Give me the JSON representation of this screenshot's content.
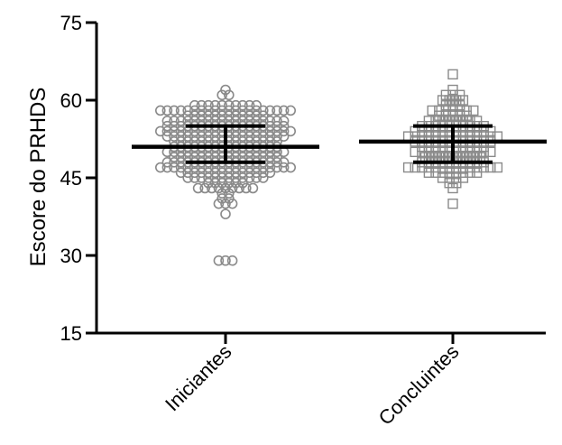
{
  "chart_data": {
    "type": "scatter",
    "ylabel": "Escore do PRHDS",
    "xlabel": "",
    "ylim": [
      15,
      75
    ],
    "yticks": [
      15,
      30,
      45,
      60,
      75
    ],
    "categories": [
      "Iniciantes",
      "Concluintes"
    ],
    "error_bars": "mean ± SD",
    "series": [
      {
        "category": "Iniciantes",
        "marker": "circle",
        "mean": 51,
        "sd_low": 48,
        "sd_high": 55,
        "values": [
          62,
          61,
          61,
          59,
          59,
          59,
          59,
          59,
          59,
          59,
          59,
          59,
          59,
          58,
          58,
          58,
          58,
          58,
          58,
          58,
          58,
          58,
          58,
          58,
          58,
          58,
          58,
          58,
          58,
          58,
          58,
          58,
          58,
          57,
          57,
          57,
          57,
          57,
          57,
          57,
          57,
          57,
          57,
          57,
          57,
          56,
          56,
          56,
          56,
          56,
          56,
          56,
          56,
          56,
          56,
          56,
          56,
          56,
          56,
          56,
          56,
          56,
          56,
          55,
          55,
          55,
          55,
          55,
          55,
          55,
          55,
          55,
          55,
          55,
          55,
          55,
          55,
          55,
          55,
          55,
          55,
          54,
          54,
          54,
          54,
          54,
          54,
          54,
          54,
          54,
          54,
          54,
          54,
          54,
          54,
          54,
          54,
          54,
          54,
          54,
          54,
          53,
          53,
          53,
          53,
          53,
          53,
          53,
          53,
          53,
          53,
          53,
          53,
          53,
          53,
          53,
          53,
          53,
          53,
          52,
          52,
          52,
          52,
          52,
          52,
          52,
          52,
          52,
          52,
          52,
          52,
          52,
          52,
          52,
          52,
          51,
          51,
          51,
          51,
          51,
          51,
          51,
          51,
          51,
          51,
          51,
          51,
          51,
          51,
          51,
          51,
          50,
          50,
          50,
          50,
          50,
          50,
          50,
          50,
          50,
          50,
          50,
          50,
          50,
          50,
          50,
          50,
          50,
          50,
          49,
          49,
          49,
          49,
          49,
          49,
          49,
          49,
          49,
          49,
          49,
          49,
          49,
          49,
          49,
          49,
          48,
          48,
          48,
          48,
          48,
          48,
          48,
          48,
          48,
          48,
          48,
          48,
          48,
          48,
          48,
          48,
          48,
          48,
          47,
          47,
          47,
          47,
          47,
          47,
          47,
          47,
          47,
          47,
          47,
          47,
          47,
          47,
          47,
          47,
          47,
          47,
          47,
          47,
          46,
          46,
          46,
          46,
          46,
          46,
          46,
          46,
          46,
          46,
          46,
          46,
          46,
          46,
          45,
          45,
          45,
          45,
          45,
          45,
          45,
          45,
          45,
          45,
          45,
          45,
          44,
          44,
          44,
          44,
          44,
          44,
          43,
          43,
          43,
          43,
          43,
          43,
          43,
          43,
          43,
          42,
          42,
          41,
          41,
          40,
          40,
          40,
          38,
          29,
          29,
          29
        ]
      },
      {
        "category": "Concluintes",
        "marker": "square",
        "mean": 52,
        "sd_low": 48,
        "sd_high": 55,
        "values": [
          65,
          62,
          61,
          61,
          61,
          60,
          60,
          60,
          60,
          59,
          59,
          59,
          58,
          58,
          58,
          58,
          58,
          58,
          58,
          57,
          57,
          57,
          57,
          57,
          56,
          56,
          56,
          56,
          56,
          56,
          56,
          56,
          55,
          55,
          55,
          55,
          55,
          55,
          55,
          55,
          55,
          55,
          54,
          54,
          54,
          54,
          54,
          54,
          54,
          54,
          54,
          54,
          54,
          54,
          53,
          53,
          53,
          53,
          53,
          53,
          53,
          53,
          53,
          53,
          53,
          53,
          53,
          53,
          52,
          52,
          52,
          52,
          52,
          52,
          52,
          52,
          52,
          52,
          52,
          52,
          51,
          51,
          51,
          51,
          51,
          51,
          51,
          51,
          51,
          51,
          50,
          50,
          50,
          50,
          50,
          50,
          50,
          50,
          50,
          50,
          50,
          50,
          49,
          49,
          49,
          49,
          49,
          49,
          49,
          49,
          49,
          48,
          48,
          48,
          48,
          48,
          48,
          48,
          48,
          48,
          48,
          47,
          47,
          47,
          47,
          47,
          47,
          47,
          47,
          47,
          47,
          47,
          47,
          47,
          47,
          46,
          46,
          46,
          46,
          46,
          46,
          46,
          46,
          45,
          45,
          45,
          45,
          44,
          44,
          43,
          40
        ]
      }
    ],
    "colors": {
      "marker_stroke": "#8a8a8a",
      "axis": "#000000",
      "error_bar": "#000000"
    }
  }
}
